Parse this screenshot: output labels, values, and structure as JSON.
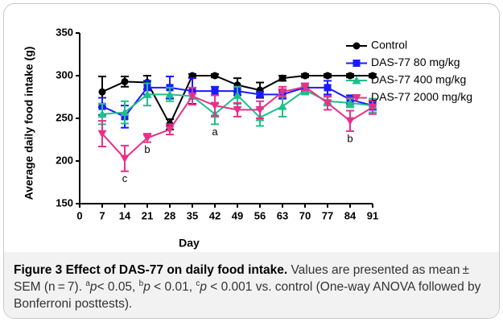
{
  "chart_data": {
    "type": "line",
    "xlabel": "Day",
    "ylabel": "Average daily food intake (g)",
    "x": [
      7,
      14,
      21,
      28,
      35,
      42,
      49,
      56,
      63,
      70,
      77,
      84,
      91
    ],
    "xlim": [
      0,
      91
    ],
    "xticks": [
      0,
      7,
      14,
      21,
      28,
      35,
      42,
      49,
      56,
      63,
      70,
      77,
      84,
      91
    ],
    "ylim": [
      150,
      350
    ],
    "yticks": [
      150,
      200,
      250,
      300,
      350
    ],
    "legend": "upper right",
    "series": [
      {
        "name": "Control",
        "color": "#000000",
        "marker": "circle",
        "values": [
          281,
          293,
          292,
          243,
          300,
          300,
          289,
          283,
          297,
          300,
          300,
          300,
          300
        ],
        "errors": [
          18,
          6,
          8,
          6,
          2,
          2,
          8,
          9,
          3,
          2,
          2,
          2,
          2
        ]
      },
      {
        "name": "DAS-77 80 mg/kg",
        "color": "#1a1aff",
        "marker": "square",
        "values": [
          264,
          252,
          286,
          286,
          282,
          282,
          282,
          278,
          278,
          286,
          286,
          272,
          265
        ],
        "errors": [
          10,
          13,
          8,
          13,
          15,
          5,
          5,
          3,
          5,
          5,
          8,
          5,
          5
        ]
      },
      {
        "name": "DAS-77 400 mg/kg",
        "color": "#1fbf8a",
        "marker": "triangle",
        "values": [
          255,
          257,
          278,
          278,
          276,
          255,
          277,
          251,
          264,
          283,
          270,
          268,
          265
        ],
        "errors": [
          12,
          13,
          13,
          8,
          10,
          12,
          10,
          10,
          12,
          5,
          5,
          5,
          8
        ]
      },
      {
        "name": "DAS-77 2000 mg/kg",
        "color": "#e8308a",
        "marker": "triangle-down",
        "values": [
          232,
          203,
          227,
          237,
          276,
          265,
          260,
          260,
          281,
          287,
          268,
          247,
          263
        ],
        "errors": [
          15,
          15,
          5,
          6,
          10,
          12,
          8,
          10,
          6,
          4,
          8,
          12,
          8
        ]
      }
    ],
    "annotations": [
      {
        "text": "c",
        "x": 14
      },
      {
        "text": "b",
        "x": 21
      },
      {
        "text": "a",
        "x": 42
      },
      {
        "text": "b",
        "x": 84
      }
    ]
  },
  "caption": {
    "title": "Figure 3 Effect of DAS-77 on daily food intake.",
    "body": [
      {
        "text": " Values are presented as mean ± SEM (n = 7). ",
        "style": "normal"
      },
      {
        "text": "a",
        "style": "sup"
      },
      {
        "text": "p",
        "style": "italic"
      },
      {
        "text": "< 0.05, ",
        "style": "normal"
      },
      {
        "text": "b",
        "style": "sup"
      },
      {
        "text": "p",
        "style": "italic"
      },
      {
        "text": " < 0.01, ",
        "style": "normal"
      },
      {
        "text": "c",
        "style": "sup"
      },
      {
        "text": "p",
        "style": "italic"
      },
      {
        "text": " < 0.001 vs. control (One-way ANOVA followed by Bonferroni posttests).",
        "style": "normal"
      }
    ]
  }
}
